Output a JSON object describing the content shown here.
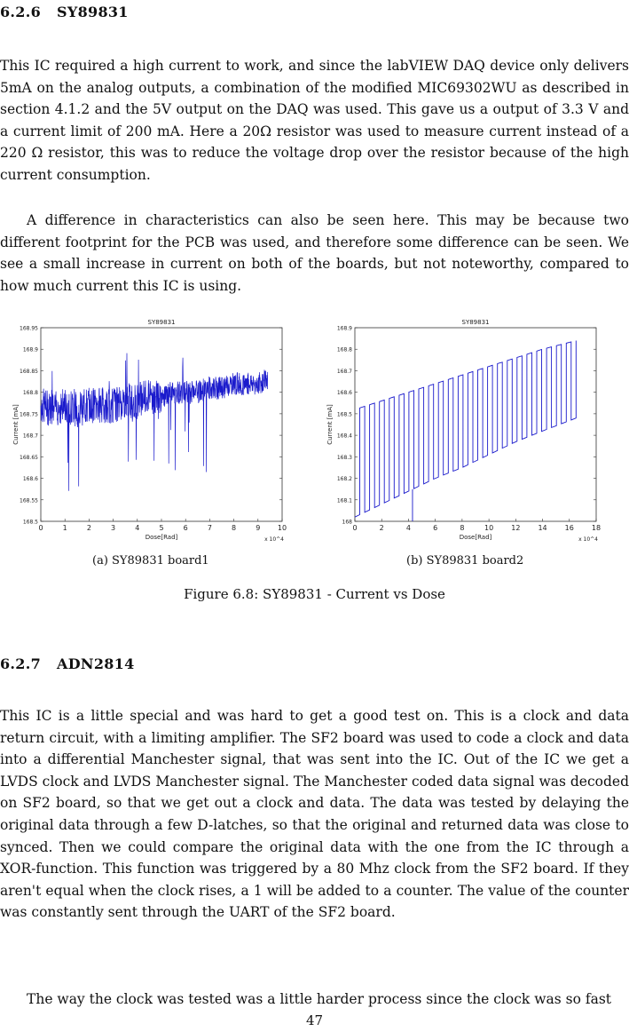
{
  "section1": {
    "number": "6.2.6",
    "title": "SY89831",
    "paragraphs": [
      "This IC required a high current to work, and since the labVIEW DAQ device only delivers 5mA on the analog outputs, a combination of the modified MIC69302WU as described in section 4.1.2 and the 5V output on the DAQ was used. This gave us a output of 3.3 V and a current limit of 200 mA. Here a 20Ω resistor was used to measure current instead of a 220 Ω resistor, this was to reduce the voltage drop over the resistor because of the high current consumption.",
      "A difference in characteristics can also be seen here. This may be because two different footprint for the PCB was used, and therefore some difference can be seen. We see a small increase in current on both of the boards, but not noteworthy, compared to how much current this IC is using."
    ]
  },
  "figure": {
    "caption": "Figure 6.8: SY89831 - Current vs Dose",
    "subcaptions": [
      "(a) SY89831 board1",
      "(b) SY89831 board2"
    ]
  },
  "chart_data": [
    {
      "type": "line",
      "title": "SY89831",
      "xlabel": "Dose[Rad]",
      "ylabel": "Current [mA]",
      "x_multiplier_label": "x 10^4",
      "xlim": [
        0,
        10
      ],
      "ylim": [
        168.5,
        168.95
      ],
      "xticks": [
        "0",
        "1",
        "2",
        "3",
        "4",
        "5",
        "6",
        "7",
        "8",
        "9",
        "10"
      ],
      "yticks": [
        "168.5",
        "168.55",
        "168.6",
        "168.65",
        "168.7",
        "168.75",
        "168.8",
        "168.85",
        "168.9",
        "168.95"
      ],
      "series": [
        {
          "color": "#1a1acc",
          "x": [
            0.0,
            0.5,
            1.0,
            1.5,
            2.0,
            2.5,
            3.0,
            3.5,
            4.0,
            4.5,
            5.0,
            5.5,
            6.0,
            6.5,
            7.0,
            7.5,
            8.0,
            8.5,
            9.0,
            9.4
          ],
          "y": [
            168.77,
            168.76,
            168.77,
            168.76,
            168.77,
            168.77,
            168.77,
            168.78,
            168.78,
            168.79,
            168.79,
            168.8,
            168.8,
            168.8,
            168.81,
            168.81,
            168.82,
            168.82,
            168.82,
            168.83
          ],
          "noise_amplitude": 0.06
        }
      ]
    },
    {
      "type": "line",
      "title": "SY89831",
      "xlabel": "Dose[Rad]",
      "ylabel": "Current [mA]",
      "x_multiplier_label": "x 10^4",
      "xlim": [
        0,
        18
      ],
      "ylim": [
        168.0,
        168.9
      ],
      "xticks": [
        "0",
        "2",
        "4",
        "6",
        "8",
        "10",
        "12",
        "14",
        "16",
        "18"
      ],
      "yticks": [
        "168",
        "168.1",
        "168.2",
        "168.3",
        "168.4",
        "168.5",
        "168.6",
        "168.7",
        "168.8",
        "168.9"
      ],
      "series": [
        {
          "color": "#1a1acc",
          "x": [
            0.0,
            2.0,
            4.0,
            6.0,
            8.0,
            10.0,
            12.0,
            14.0,
            16.5
          ],
          "y_low": [
            168.02,
            168.08,
            168.14,
            168.2,
            168.25,
            168.31,
            168.37,
            168.42,
            168.48
          ],
          "y_high": [
            168.52,
            168.56,
            168.6,
            168.64,
            168.68,
            168.72,
            168.76,
            168.8,
            168.84
          ],
          "switch_count": 45
        }
      ]
    }
  ],
  "section2": {
    "number": "6.2.7",
    "title": "ADN2814",
    "paragraphs": [
      "This IC is a little special and was hard to get a good test on. This is a clock and data return circuit, with a limiting amplifier. The SF2 board was used to code a clock and data into a differential Manchester signal, that was sent into the IC. Out of the IC we get a LVDS clock and LVDS Manchester signal. The Manchester coded data signal was decoded on SF2 board, so that we get out a clock and data. The data was tested by delaying the original data through a few D-latches, so that the original and returned data was close to synced. Then we could compare the original data with the one from the IC through a XOR-function. This function was triggered by a 80 Mhz clock from the SF2 board. If they aren't equal when the clock rises, a 1 will be added to a counter. The value of the counter was constantly sent through the UART of the SF2 board.",
      "The way the clock was tested was a little harder process since the clock was so fast"
    ]
  },
  "page_number": "47"
}
